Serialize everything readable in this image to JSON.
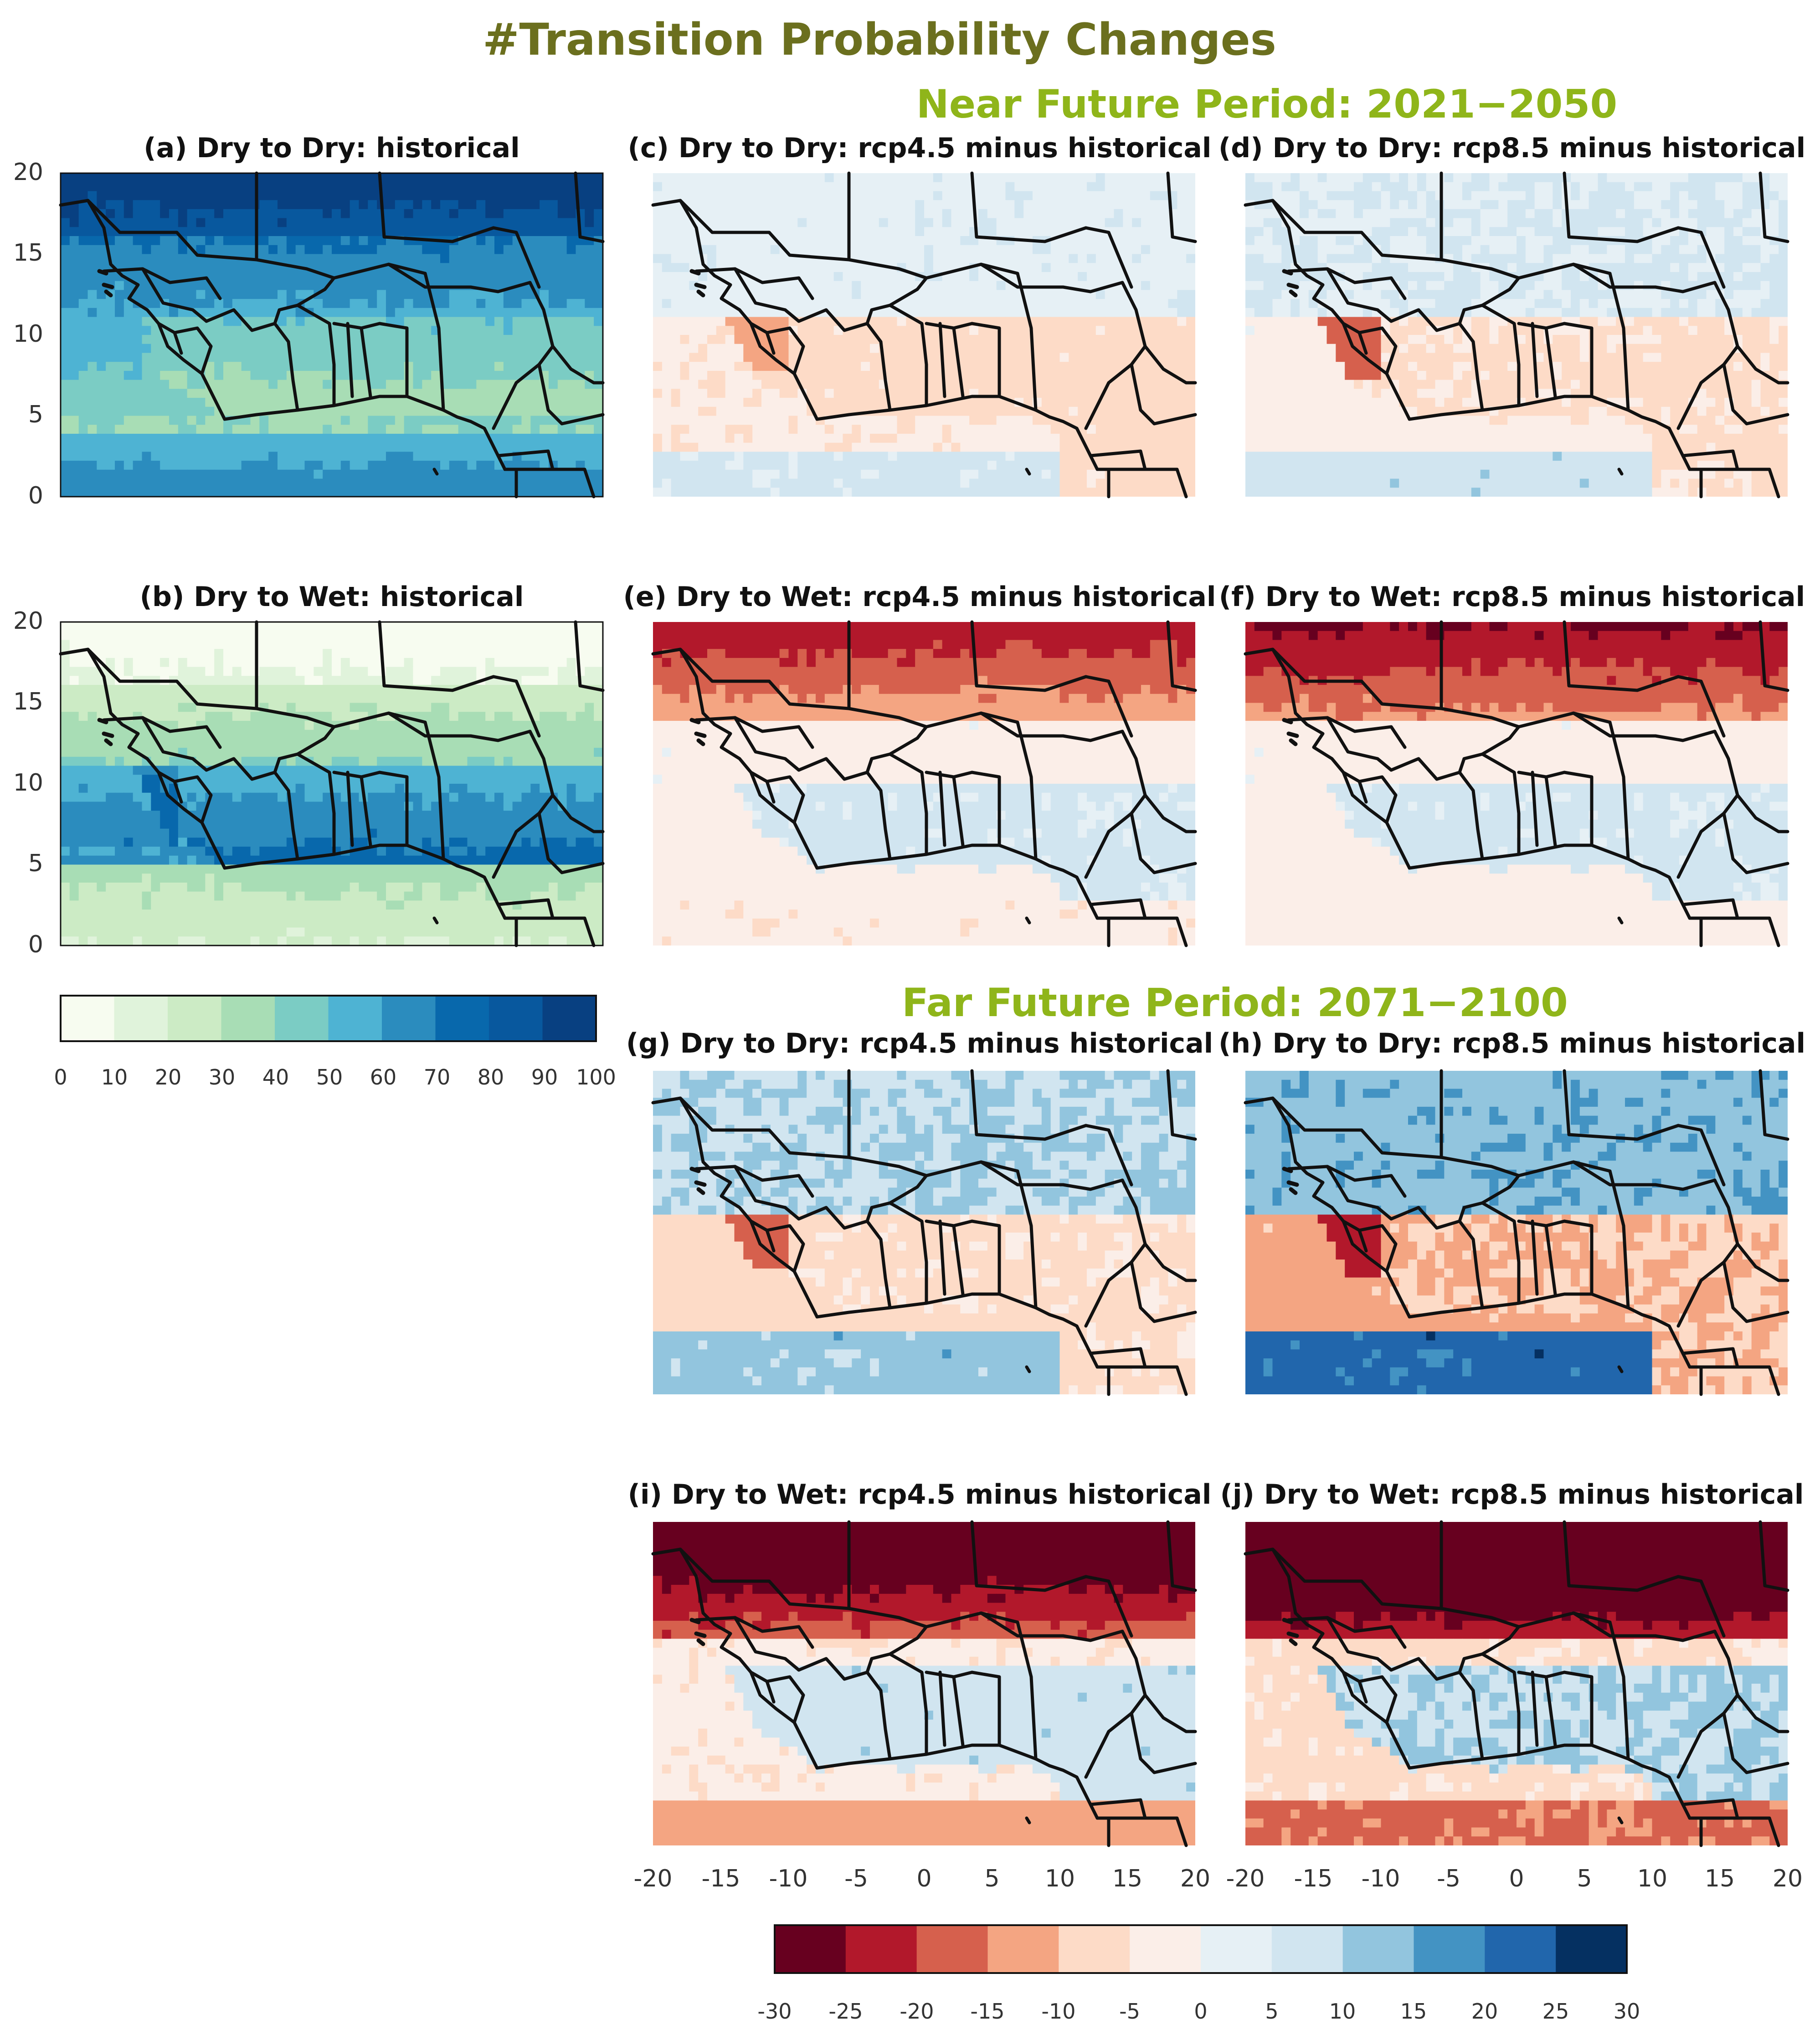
{
  "figure": {
    "title": "#Transition Probability Changes",
    "title_color": "#6b6f1e",
    "period_color": "#8fb51a",
    "near_period": "Near Future Period: 2021−2050",
    "far_period": "Far Future Period: 2071−2100"
  },
  "chart_data": {
    "type": "heatmap",
    "x_range": [
      -20,
      20
    ],
    "y_range": [
      0,
      20
    ],
    "x_ticks": [
      "-20",
      "-15",
      "-10",
      "-5",
      "0",
      "5",
      "10",
      "15",
      "20"
    ],
    "x_ticks_second": [
      "-20",
      "-15",
      "-10",
      "-5",
      "0",
      "5",
      "10",
      "15",
      "20"
    ],
    "y_ticks": [
      "0",
      "5",
      "10",
      "15",
      "20"
    ],
    "panels": [
      {
        "id": "a",
        "title": "(a) Dry to Dry: historical",
        "kind": "historical",
        "field": "dry_to_dry_hist"
      },
      {
        "id": "b",
        "title": "(b) Dry to Wet: historical",
        "kind": "historical",
        "field": "dry_to_wet_hist"
      },
      {
        "id": "c",
        "title": "(c) Dry to Dry: rcp4.5 minus historical",
        "kind": "difference",
        "field": "dd_near_45"
      },
      {
        "id": "d",
        "title": "(d) Dry to Dry: rcp8.5 minus historical",
        "kind": "difference",
        "field": "dd_near_85"
      },
      {
        "id": "e",
        "title": "(e) Dry to Wet: rcp4.5 minus historical",
        "kind": "difference",
        "field": "dw_near_45"
      },
      {
        "id": "f",
        "title": "(f) Dry to Wet: rcp8.5 minus historical",
        "kind": "difference",
        "field": "dw_near_85"
      },
      {
        "id": "g",
        "title": "(g) Dry to Dry: rcp4.5 minus historical",
        "kind": "difference",
        "field": "dd_far_45"
      },
      {
        "id": "h",
        "title": "(h) Dry to Dry: rcp8.5 minus historical",
        "kind": "difference",
        "field": "dd_far_85"
      },
      {
        "id": "i",
        "title": "(i) Dry to Wet: rcp4.5 minus historical",
        "kind": "difference",
        "field": "dw_far_45"
      },
      {
        "id": "j",
        "title": "(j) Dry to Wet: rcp8.5 minus historical",
        "kind": "difference",
        "field": "dw_far_85"
      }
    ],
    "historical_colorbar": {
      "levels": [
        0,
        10,
        20,
        30,
        40,
        50,
        60,
        70,
        80,
        90,
        100
      ],
      "labels": [
        "0",
        "10",
        "20",
        "30",
        "40",
        "50",
        "60",
        "70",
        "80",
        "90",
        "100"
      ],
      "colors": [
        "#f7fcf0",
        "#e0f3db",
        "#ccebc5",
        "#a8ddb5",
        "#7bccc4",
        "#4eb3d3",
        "#2b8cbe",
        "#0868ac",
        "#08589e",
        "#084081"
      ]
    },
    "difference_colorbar": {
      "levels": [
        -30,
        -25,
        -20,
        -15,
        -10,
        -5,
        0,
        5,
        10,
        15,
        20,
        25,
        30
      ],
      "labels": [
        "-30",
        "-25",
        "-20",
        "-15",
        "-10",
        "-5",
        "0",
        "5",
        "10",
        "15",
        "20",
        "25",
        "30"
      ],
      "colors": [
        "#67001f",
        "#b2182b",
        "#d6604d",
        "#f4a582",
        "#fddbc7",
        "#fbeee8",
        "#e6f0f5",
        "#d1e5f0",
        "#92c5de",
        "#4393c3",
        "#2166ac",
        "#053061"
      ]
    }
  }
}
